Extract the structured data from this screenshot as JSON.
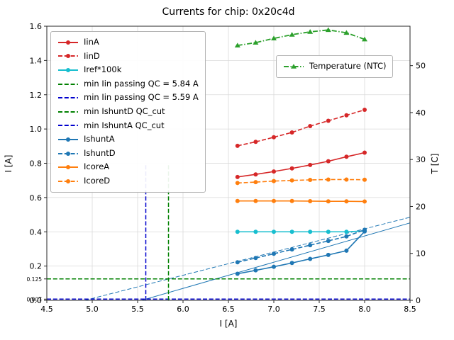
{
  "chart_data": {
    "type": "line",
    "title": "Currents for chip: 0x20c4d",
    "xlabel": "I [A]",
    "ylabel": "I [A]",
    "ylabel_right": "T [C]",
    "xlim": [
      4.5,
      8.5
    ],
    "ylim": [
      0.0,
      1.6
    ],
    "ylim_right": [
      0,
      58.4
    ],
    "grid": true,
    "xticks": [
      {
        "v": 4.5,
        "label": "4.5"
      },
      {
        "v": 5.0,
        "label": "5.0"
      },
      {
        "v": 5.5,
        "label": "5.5"
      },
      {
        "v": 6.0,
        "label": "6.0"
      },
      {
        "v": 6.5,
        "label": "6.5"
      },
      {
        "v": 7.0,
        "label": "7.0"
      },
      {
        "v": 7.5,
        "label": "7.5"
      },
      {
        "v": 8.0,
        "label": "8.0"
      },
      {
        "v": 8.5,
        "label": "8.5"
      }
    ],
    "yticks": [
      {
        "v": 0.0,
        "label": "0.0"
      },
      {
        "v": 0.2,
        "label": "0.2"
      },
      {
        "v": 0.4,
        "label": "0.4"
      },
      {
        "v": 0.6,
        "label": "0.6"
      },
      {
        "v": 0.8,
        "label": "0.8"
      },
      {
        "v": 1.0,
        "label": "1.0"
      },
      {
        "v": 1.2,
        "label": "1.2"
      },
      {
        "v": 1.4,
        "label": "1.4"
      },
      {
        "v": 1.6,
        "label": "1.6"
      }
    ],
    "yticks_extra": [
      {
        "v": 0.125,
        "label": "0.125"
      },
      {
        "v": 0.007,
        "label": "0.007"
      }
    ],
    "yticks_right": [
      {
        "v": 0,
        "label": "0"
      },
      {
        "v": 10,
        "label": "10"
      },
      {
        "v": 20,
        "label": "20"
      },
      {
        "v": 30,
        "label": "30"
      },
      {
        "v": 40,
        "label": "40"
      },
      {
        "v": 50,
        "label": "50"
      }
    ],
    "x": [
      6.6,
      6.8,
      7.0,
      7.2,
      7.4,
      7.6,
      7.8,
      8.0
    ],
    "series": [
      {
        "name": "IinA",
        "color": "#d62728",
        "style": "solid",
        "marker": "circle",
        "values": [
          0.72,
          0.735,
          0.752,
          0.77,
          0.79,
          0.812,
          0.838,
          0.862
        ]
      },
      {
        "name": "IinD",
        "color": "#d62728",
        "style": "dashed",
        "marker": "circle",
        "values": [
          0.902,
          0.925,
          0.952,
          0.98,
          1.017,
          1.048,
          1.08,
          1.112
        ]
      },
      {
        "name": "Iref*100k",
        "color": "#17becf",
        "style": "solid",
        "marker": "circle",
        "values": [
          0.4,
          0.4,
          0.4,
          0.4,
          0.4,
          0.4,
          0.4,
          0.405
        ]
      },
      {
        "name": "IshuntA",
        "color": "#1f77b4",
        "style": "solid",
        "marker": "circle",
        "values": [
          0.155,
          0.175,
          0.196,
          0.218,
          0.242,
          0.265,
          0.29,
          0.402
        ]
      },
      {
        "name": "IshuntD",
        "color": "#1f77b4",
        "style": "dashed",
        "marker": "circle",
        "values": [
          0.222,
          0.247,
          0.272,
          0.297,
          0.322,
          0.347,
          0.373,
          0.412
        ]
      },
      {
        "name": "IcoreA",
        "color": "#ff7f0e",
        "style": "solid",
        "marker": "circle",
        "values": [
          0.58,
          0.58,
          0.58,
          0.58,
          0.579,
          0.578,
          0.578,
          0.577
        ]
      },
      {
        "name": "IcoreD",
        "color": "#ff7f0e",
        "style": "dashed",
        "marker": "circle",
        "values": [
          0.685,
          0.69,
          0.696,
          0.7,
          0.703,
          0.705,
          0.705,
          0.704
        ]
      }
    ],
    "temperature_series": {
      "name": "Temperature (NTC)",
      "axis": "right",
      "color": "#2ca02c",
      "style": "dashdot",
      "marker": "triangle",
      "values": [
        54.3,
        54.9,
        55.8,
        56.6,
        57.2,
        57.6,
        57.0,
        55.6
      ]
    },
    "fit_lines": [
      {
        "name": "IshuntA fit",
        "color": "#1f77b4",
        "style": "solid",
        "x1": 5.545,
        "y1": 0.0,
        "x2": 8.5,
        "y2": 0.452
      },
      {
        "name": "IshuntD fit",
        "color": "#1f77b4",
        "style": "dashed",
        "x1": 4.92,
        "y1": 0.0,
        "x2": 8.5,
        "y2": 0.485
      }
    ],
    "reference_lines": {
      "vertical": [
        {
          "label": "min Iin passing QC = 5.84 A",
          "x": 5.84,
          "y0": 0.0,
          "y1": 0.8,
          "color": "#008000",
          "style": "dashed"
        },
        {
          "label": "min Iin passing QC = 5.59 A",
          "x": 5.59,
          "y0": 0.0,
          "y1": 0.8,
          "color": "#0000cd",
          "style": "dashed"
        }
      ],
      "horizontal": [
        {
          "label": "min IshuntD QC_cut",
          "y": 0.125,
          "color": "#008000",
          "style": "dashed"
        },
        {
          "label": "min IshuntA QC_cut",
          "y": 0.007,
          "color": "#0000cd",
          "style": "dashed"
        }
      ]
    },
    "legend": {
      "position": "upper left",
      "entries": [
        {
          "label": "IinA",
          "color": "#d62728",
          "style": "solid",
          "marker": "circle"
        },
        {
          "label": "IinD",
          "color": "#d62728",
          "style": "dashed",
          "marker": "circle"
        },
        {
          "label": "Iref*100k",
          "color": "#17becf",
          "style": "solid",
          "marker": "circle"
        },
        {
          "label": "min Iin passing QC = 5.84 A",
          "color": "#008000",
          "style": "dashed",
          "marker": "none"
        },
        {
          "label": "min Iin passing QC = 5.59 A",
          "color": "#0000cd",
          "style": "dashed",
          "marker": "none"
        },
        {
          "label": "min IshuntD QC_cut",
          "color": "#008000",
          "style": "dashed",
          "marker": "none"
        },
        {
          "label": "min IshuntA QC_cut",
          "color": "#0000cd",
          "style": "dashed",
          "marker": "none"
        },
        {
          "label": "IshuntA",
          "color": "#1f77b4",
          "style": "solid",
          "marker": "circle"
        },
        {
          "label": "IshuntD",
          "color": "#1f77b4",
          "style": "dashed",
          "marker": "circle"
        },
        {
          "label": "IcoreA",
          "color": "#ff7f0e",
          "style": "solid",
          "marker": "circle"
        },
        {
          "label": "IcoreD",
          "color": "#ff7f0e",
          "style": "dashed",
          "marker": "circle"
        }
      ]
    },
    "legend2": {
      "position": "upper right",
      "entries": [
        {
          "label": "Temperature (NTC)",
          "color": "#2ca02c",
          "style": "dashdot",
          "marker": "triangle"
        }
      ]
    }
  }
}
